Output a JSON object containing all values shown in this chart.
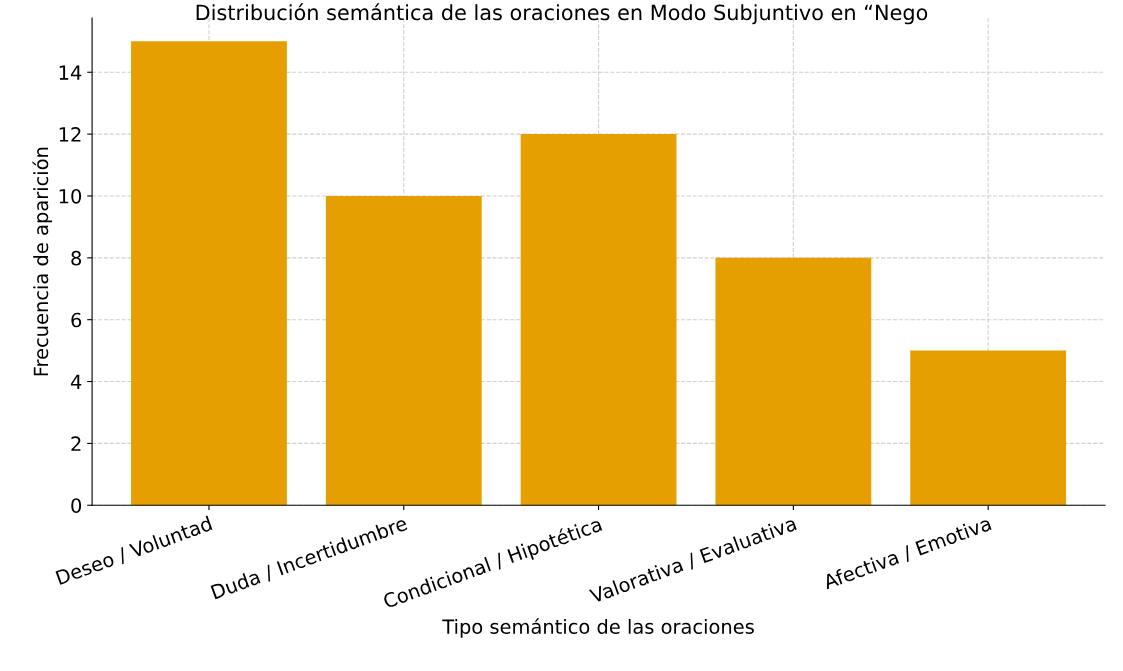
{
  "chart_data": {
    "type": "bar",
    "title": "Distribución semántica de las oraciones en Modo Subjuntivo en “Nego",
    "xlabel": "Tipo semántico de las oraciones",
    "ylabel": "Frecuencia de aparición",
    "categories": [
      "Deseo / Voluntad",
      "Duda / Incertidumbre",
      "Condicional / Hipotética",
      "Valorativa / Evaluativa",
      "Afectiva / Emotiva"
    ],
    "values": [
      15,
      10,
      12,
      8,
      5
    ],
    "color": "#e69f00",
    "ylim": [
      0,
      15.75
    ],
    "yticks": [
      0,
      2,
      4,
      6,
      8,
      10,
      12,
      14
    ],
    "grid": true
  }
}
